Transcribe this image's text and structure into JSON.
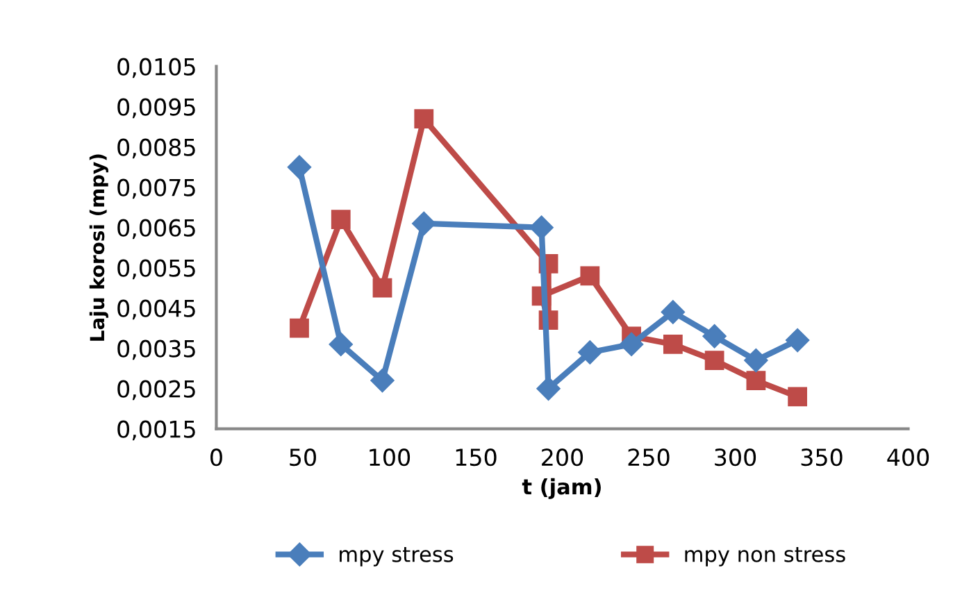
{
  "chart_data": {
    "type": "line",
    "xlabel": "t (jam)",
    "ylabel": "Laju korosi (mpy)",
    "xlim": [
      0,
      400
    ],
    "xticks": [
      0,
      50,
      100,
      150,
      200,
      250,
      300,
      350,
      400
    ],
    "ylim": [
      0.0015,
      0.0105
    ],
    "yticks": [
      {
        "value": 0.0015,
        "label": "0,0015"
      },
      {
        "value": 0.0025,
        "label": "0,0025"
      },
      {
        "value": 0.0035,
        "label": "0,0035"
      },
      {
        "value": 0.0045,
        "label": "0,0045"
      },
      {
        "value": 0.0055,
        "label": "0,0055"
      },
      {
        "value": 0.0065,
        "label": "0,0065"
      },
      {
        "value": 0.0075,
        "label": "0,0075"
      },
      {
        "value": 0.0085,
        "label": "0,0085"
      },
      {
        "value": 0.0095,
        "label": "0,0095"
      },
      {
        "value": 0.0105,
        "label": "0,0105"
      }
    ],
    "grid": false,
    "legend": "bottom",
    "line_style": "solid",
    "series": [
      {
        "name": "mpy stress",
        "color": "#4a7ebb",
        "marker": "diamond",
        "x": [
          48,
          72,
          96,
          120,
          188,
          192,
          216,
          240,
          264,
          288,
          312,
          336
        ],
        "values": [
          0.008,
          0.0036,
          0.0027,
          0.0066,
          0.0065,
          0.0025,
          0.0034,
          0.0036,
          0.0044,
          0.0038,
          0.0032,
          0.0037
        ]
      },
      {
        "name": "mpy non stress",
        "color": "#be4b48",
        "marker": "square",
        "x": [
          48,
          72,
          96,
          120,
          192,
          192,
          188,
          216,
          240,
          264,
          288,
          312,
          336
        ],
        "values": [
          0.004,
          0.0067,
          0.005,
          0.0092,
          0.0056,
          0.0042,
          0.0048,
          0.0053,
          0.0038,
          0.0036,
          0.0032,
          0.0027,
          0.0023
        ]
      }
    ]
  }
}
